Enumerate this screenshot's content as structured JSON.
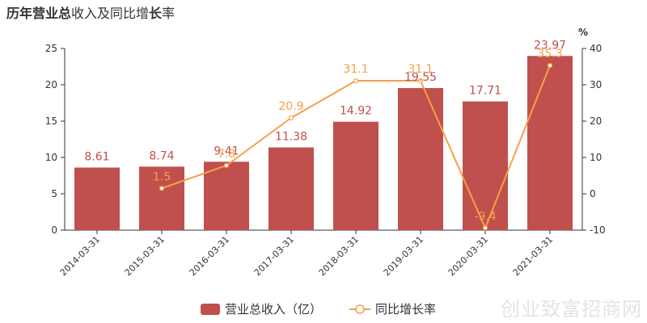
{
  "title_parts": [
    {
      "text": "历年",
      "bold": true
    },
    {
      "text": "营业总",
      "bold": true
    },
    {
      "text": "收入及同比增",
      "bold": false
    },
    {
      "text": "长",
      "bold": true
    },
    {
      "text": "率",
      "bold": false
    }
  ],
  "watermark": "创业致富招商网",
  "chart_data": {
    "type": "bar",
    "categories": [
      "2014-03-31",
      "2015-03-31",
      "2016-03-31",
      "2017-03-31",
      "2018-03-31",
      "2019-03-31",
      "2020-03-31",
      "2021-03-31"
    ],
    "series": [
      {
        "name": "营业总收入（亿）",
        "type": "bar",
        "axis": "left",
        "values": [
          8.61,
          8.74,
          9.41,
          11.38,
          14.92,
          19.55,
          17.71,
          23.97
        ],
        "labels": [
          "8.61",
          "8.74",
          "9.41",
          "11.38",
          "14.92",
          "19.55",
          "17.71",
          "23.97"
        ],
        "color": "#c0504d"
      },
      {
        "name": "同比增长率",
        "type": "line",
        "axis": "right",
        "values": [
          null,
          1.5,
          7.8,
          20.9,
          31.1,
          31.1,
          -9.4,
          35.3
        ],
        "labels": [
          "",
          "1.5",
          "7.8",
          "20.9",
          "31.1",
          "31.1",
          "-9.4",
          "35.3"
        ],
        "color": "#f5a048"
      }
    ],
    "left_axis": {
      "min": 0,
      "max": 25,
      "ticks": [
        0,
        5,
        10,
        15,
        20,
        25
      ]
    },
    "right_axis": {
      "min": -10,
      "max": 40,
      "ticks": [
        -10,
        0,
        10,
        20,
        30,
        40
      ],
      "unit": "%"
    },
    "legend_position": "bottom"
  }
}
